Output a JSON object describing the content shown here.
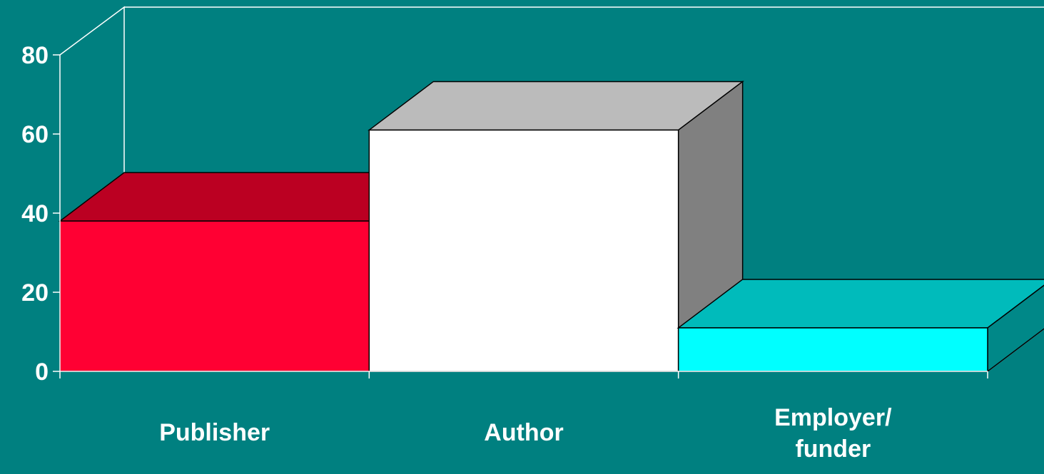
{
  "chart_data": {
    "type": "bar",
    "style": "3d",
    "categories": [
      "Publisher",
      "Author",
      "Employer/ funder"
    ],
    "category_lines": [
      [
        "Publisher"
      ],
      [
        "Author"
      ],
      [
        "Employer/",
        "funder"
      ]
    ],
    "values": [
      38,
      61,
      11
    ],
    "title": "",
    "xlabel": "",
    "ylabel": "",
    "ylim": [
      0,
      80
    ],
    "yticks": [
      "0",
      "20",
      "40",
      "60",
      "80"
    ],
    "grid": false,
    "legend": "none",
    "colors": {
      "background": "#008080",
      "bars": [
        "#FF0033",
        "#FFFFFF",
        "#00FFFF"
      ],
      "tops": [
        "#BB0022",
        "#BBBBBB",
        "#00BBBB"
      ],
      "sides": [
        "#880018",
        "#808080",
        "#008888"
      ],
      "axis": "#FFFFFF",
      "text": "#FFFFFF"
    }
  }
}
